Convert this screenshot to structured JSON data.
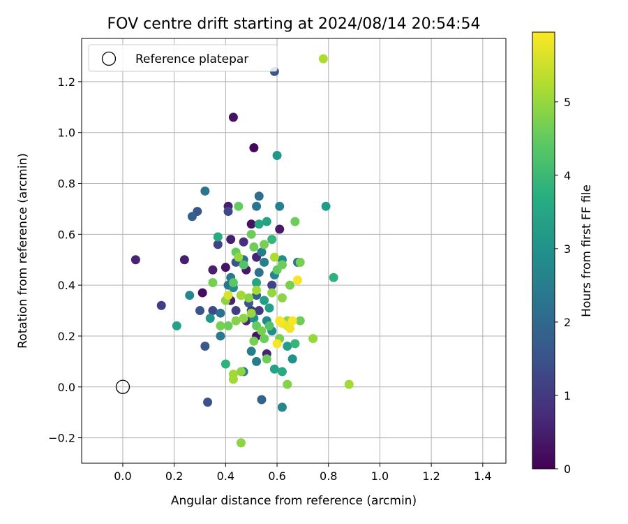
{
  "chart_data": {
    "type": "scatter",
    "title": "FOV centre drift starting at 2024/08/14 20:54:54",
    "xlabel": "Angular distance from reference (arcmin)",
    "ylabel": "Rotation from reference (arcmin)",
    "xlim": [
      -0.16,
      1.49
    ],
    "ylim": [
      -0.3,
      1.37
    ],
    "xticks": [
      0.0,
      0.2,
      0.4,
      0.6,
      0.8,
      1.0,
      1.2,
      1.4
    ],
    "xtick_labels": [
      "0.0",
      "0.2",
      "0.4",
      "0.6",
      "0.8",
      "1.0",
      "1.2",
      "1.4"
    ],
    "yticks": [
      -0.2,
      0.0,
      0.2,
      0.4,
      0.6,
      0.8,
      1.0,
      1.2
    ],
    "ytick_labels": [
      "−0.2",
      "0.0",
      "0.2",
      "0.4",
      "0.6",
      "0.8",
      "1.0",
      "1.2"
    ],
    "grid": true,
    "legend": {
      "placement": "top-left",
      "entries": [
        {
          "label": "Reference platepar",
          "marker": "open-circle"
        }
      ]
    },
    "reference_point": {
      "x": 0.0,
      "y": 0.0
    },
    "colorbar": {
      "label": "Hours from first FF file",
      "colormap": "viridis",
      "range": [
        0,
        5.95
      ],
      "ticks": [
        0,
        1,
        2,
        3,
        4,
        5
      ],
      "tick_labels": [
        "0",
        "1",
        "2",
        "3",
        "4",
        "5"
      ]
    },
    "points": [
      [
        0.43,
        1.06,
        0.3
      ],
      [
        0.51,
        0.94,
        0.1
      ],
      [
        0.41,
        0.71,
        0.5
      ],
      [
        0.5,
        0.64,
        0.3
      ],
      [
        0.61,
        0.62,
        0.4
      ],
      [
        0.42,
        0.58,
        0.5
      ],
      [
        0.47,
        0.57,
        0.8
      ],
      [
        0.52,
        0.51,
        0.6
      ],
      [
        0.05,
        0.5,
        0.6
      ],
      [
        0.24,
        0.5,
        0.5
      ],
      [
        0.35,
        0.46,
        0.5
      ],
      [
        0.4,
        0.47,
        0.3
      ],
      [
        0.48,
        0.46,
        0.4
      ],
      [
        0.31,
        0.37,
        0.2
      ],
      [
        0.42,
        0.34,
        0.6
      ],
      [
        0.5,
        0.3,
        0.9
      ],
      [
        0.53,
        0.3,
        1.0
      ],
      [
        0.48,
        0.26,
        0.7
      ],
      [
        0.52,
        0.2,
        0.3
      ],
      [
        0.56,
        0.13,
        0.6
      ],
      [
        0.15,
        0.32,
        1.1
      ],
      [
        0.44,
        0.3,
        1.1
      ],
      [
        0.58,
        0.4,
        1.2
      ],
      [
        0.41,
        0.69,
        1.3
      ],
      [
        0.59,
        1.24,
        1.6
      ],
      [
        0.33,
        -0.06,
        1.5
      ],
      [
        0.54,
        -0.05,
        1.9
      ],
      [
        0.32,
        0.16,
        1.6
      ],
      [
        0.3,
        0.3,
        1.5
      ],
      [
        0.35,
        0.3,
        1.3
      ],
      [
        0.49,
        0.33,
        1.6
      ],
      [
        0.52,
        0.36,
        1.8
      ],
      [
        0.37,
        0.56,
        1.2
      ],
      [
        0.29,
        0.69,
        1.6
      ],
      [
        0.27,
        0.67,
        1.8
      ],
      [
        0.32,
        0.77,
        2.3
      ],
      [
        0.53,
        0.75,
        2.1
      ],
      [
        0.52,
        0.71,
        2.3
      ],
      [
        0.61,
        0.71,
        2.6
      ],
      [
        0.68,
        0.49,
        2.2
      ],
      [
        0.47,
        0.06,
        2.5
      ],
      [
        0.5,
        0.14,
        2.5
      ],
      [
        0.52,
        0.1,
        2.5
      ],
      [
        0.62,
        -0.08,
        2.7
      ],
      [
        0.38,
        0.2,
        2.4
      ],
      [
        0.38,
        0.29,
        2.2
      ],
      [
        0.41,
        0.4,
        2.3
      ],
      [
        0.42,
        0.43,
        2.4
      ],
      [
        0.44,
        0.49,
        1.6
      ],
      [
        0.47,
        0.5,
        2.2
      ],
      [
        0.53,
        0.45,
        2.2
      ],
      [
        0.55,
        0.49,
        2.5
      ],
      [
        0.54,
        0.53,
        2.5
      ],
      [
        0.59,
        0.44,
        2.7
      ],
      [
        0.62,
        0.5,
        2.9
      ],
      [
        0.26,
        0.36,
        2.7
      ],
      [
        0.34,
        0.27,
        3.1
      ],
      [
        0.21,
        0.24,
        3.4
      ],
      [
        0.43,
        0.39,
        2.8
      ],
      [
        0.46,
        0.36,
        3.0
      ],
      [
        0.51,
        0.27,
        2.9
      ],
      [
        0.56,
        0.26,
        2.7
      ],
      [
        0.58,
        0.22,
        2.9
      ],
      [
        0.6,
        0.91,
        3.1
      ],
      [
        0.79,
        0.71,
        3.2
      ],
      [
        0.56,
        0.65,
        3.4
      ],
      [
        0.53,
        0.64,
        3.5
      ],
      [
        0.37,
        0.59,
        3.6
      ],
      [
        0.52,
        0.41,
        3.5
      ],
      [
        0.55,
        0.34,
        3.3
      ],
      [
        0.57,
        0.31,
        3.3
      ],
      [
        0.64,
        0.16,
        3.3
      ],
      [
        0.66,
        0.11,
        3.0
      ],
      [
        0.59,
        0.07,
        3.4
      ],
      [
        0.62,
        0.06,
        3.6
      ],
      [
        0.4,
        0.09,
        3.8
      ],
      [
        0.58,
        0.58,
        3.9
      ],
      [
        0.67,
        0.17,
        3.9
      ],
      [
        0.82,
        0.43,
        3.8
      ],
      [
        0.45,
        0.71,
        4.5
      ],
      [
        0.67,
        0.65,
        4.6
      ],
      [
        0.44,
        0.53,
        4.5
      ],
      [
        0.47,
        0.48,
        4.3
      ],
      [
        0.5,
        0.6,
        4.6
      ],
      [
        0.51,
        0.55,
        4.6
      ],
      [
        0.55,
        0.56,
        4.7
      ],
      [
        0.6,
        0.46,
        4.5
      ],
      [
        0.62,
        0.48,
        4.6
      ],
      [
        0.69,
        0.49,
        4.7
      ],
      [
        0.65,
        0.4,
        4.7
      ],
      [
        0.43,
        0.41,
        4.4
      ],
      [
        0.35,
        0.41,
        4.7
      ],
      [
        0.4,
        0.34,
        4.9
      ],
      [
        0.44,
        0.26,
        4.8
      ],
      [
        0.47,
        0.27,
        4.9
      ],
      [
        0.5,
        0.29,
        5.0
      ],
      [
        0.52,
        0.24,
        4.5
      ],
      [
        0.54,
        0.22,
        4.7
      ],
      [
        0.51,
        0.18,
        4.7
      ],
      [
        0.55,
        0.19,
        4.6
      ],
      [
        0.57,
        0.24,
        4.3
      ],
      [
        0.56,
        0.11,
        4.6
      ],
      [
        0.61,
        0.19,
        4.7
      ],
      [
        0.69,
        0.26,
        4.6
      ],
      [
        0.74,
        0.19,
        5.0
      ],
      [
        0.43,
        0.05,
        5.1
      ],
      [
        0.43,
        0.03,
        5.1
      ],
      [
        0.46,
        0.06,
        4.9
      ],
      [
        0.64,
        0.01,
        4.8
      ],
      [
        0.88,
        0.01,
        5.1
      ],
      [
        0.46,
        -0.22,
        4.9
      ],
      [
        0.78,
        1.29,
        5.2
      ],
      [
        0.38,
        0.24,
        4.7
      ],
      [
        0.41,
        0.24,
        4.6
      ],
      [
        0.46,
        0.36,
        5.1
      ],
      [
        0.49,
        0.35,
        4.9
      ],
      [
        0.52,
        0.38,
        5.1
      ],
      [
        0.58,
        0.37,
        5.0
      ],
      [
        0.62,
        0.35,
        4.9
      ],
      [
        0.64,
        0.26,
        4.9
      ],
      [
        0.59,
        0.51,
        5.2
      ],
      [
        0.45,
        0.51,
        5.0
      ],
      [
        0.41,
        0.36,
        5.6
      ],
      [
        0.6,
        0.17,
        5.9
      ],
      [
        0.61,
        0.26,
        5.9
      ],
      [
        0.62,
        0.25,
        5.8
      ],
      [
        0.64,
        0.24,
        5.7
      ],
      [
        0.65,
        0.23,
        5.8
      ],
      [
        0.66,
        0.26,
        5.9
      ],
      [
        0.68,
        0.42,
        5.9
      ]
    ]
  }
}
